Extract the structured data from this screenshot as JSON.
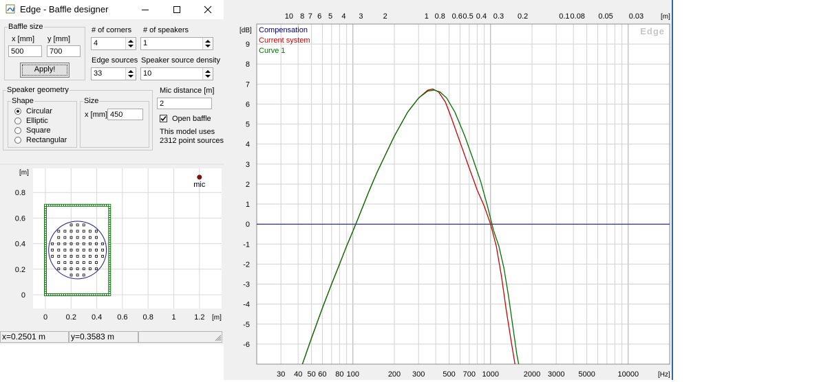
{
  "window": {
    "title": "Edge - Baffle designer",
    "baffle_size": {
      "legend": "Baffle size",
      "x_label": "x [mm]",
      "y_label": "y [mm]",
      "x_value": "500",
      "y_value": "700",
      "apply_label": "Apply!"
    },
    "corners": {
      "label": "# of corners",
      "value": "4"
    },
    "speakers": {
      "label": "# of speakers",
      "value": "1"
    },
    "edge_sources": {
      "label": "Edge sources",
      "value": "33"
    },
    "density": {
      "label": "Speaker source density",
      "value": "10"
    },
    "speaker_geometry": {
      "legend": "Speaker geometry",
      "shape_legend": "Shape",
      "shapes": [
        "Circular",
        "Elliptic",
        "Square",
        "Rectangular"
      ],
      "selected_shape": "Circular",
      "size_legend": "Size",
      "size_label": "x [mm]",
      "size_value": "450"
    },
    "mic_distance": {
      "label": "Mic distance [m]",
      "value": "2"
    },
    "open_baffle": {
      "label": "Open baffle",
      "checked": true
    },
    "model_info": {
      "line1": "This model uses",
      "line2": "2312 point sources"
    },
    "plan": {
      "unit_y": "[m]",
      "unit_x": "[m]",
      "y_ticks": [
        "0.8",
        "0.6",
        "0.4",
        "0.2",
        "0"
      ],
      "x_ticks": [
        "0",
        "0.2",
        "0.4",
        "0.6",
        "0.8",
        "1",
        "1.2"
      ],
      "mic_label": "mic",
      "baffle_w_m": 0.5,
      "baffle_h_m": 0.7,
      "speaker_center_m": [
        0.25,
        0.35
      ],
      "speaker_diameter_m": 0.45,
      "mic_pos_m": [
        1.2,
        0.92
      ]
    },
    "status": {
      "x": "x=0.2501 m",
      "y": "y=0.3583 m",
      "extra": ""
    }
  },
  "chart_data": {
    "type": "line",
    "x_scale": "log",
    "xlim": [
      20,
      20000
    ],
    "ylim": [
      -7,
      10
    ],
    "xlabel": "[Hz]",
    "ylabel": "[dB]",
    "top_axis_label": "[m]",
    "watermark": "Edge",
    "x_ticks": [
      30,
      40,
      50,
      60,
      80,
      100,
      200,
      300,
      500,
      700,
      1000,
      2000,
      3000,
      5000,
      10000
    ],
    "x_tick_labels": [
      "30",
      "40",
      "50",
      "60",
      "80",
      "100",
      "200",
      "300",
      "500",
      "700",
      "1000",
      "2000",
      "3000",
      "5000",
      "10000"
    ],
    "y_ticks": [
      -6,
      -5,
      -4,
      -3,
      -2,
      -1,
      0,
      1,
      2,
      3,
      4,
      5,
      6,
      7,
      8,
      9
    ],
    "y_tick_labels": [
      "-6",
      "-5",
      "-4",
      "-3",
      "-2",
      "-1",
      "0",
      "1",
      "2",
      "3",
      "4",
      "5",
      "6",
      "7",
      "8",
      "9"
    ],
    "top_ticks_m": [
      10,
      8,
      7,
      6,
      5,
      4,
      3,
      2,
      1,
      0.8,
      0.6,
      0.5,
      0.4,
      0.3,
      0.2,
      0.1,
      0.08,
      0.05,
      0.03
    ],
    "top_tick_labels": [
      "10",
      "8",
      "7",
      "6",
      "5",
      "4",
      "3",
      "2",
      "1",
      "0.8",
      "0.6",
      "0.5",
      "0.4",
      "0.3",
      "0.2",
      "0.1",
      "0.08",
      "0.05",
      "0.03"
    ],
    "grid": true,
    "legend_position": "top-left",
    "series": [
      {
        "name": "Compensation",
        "color": "#000080",
        "points": [
          [
            20,
            0
          ],
          [
            20000,
            0
          ]
        ]
      },
      {
        "name": "Current system",
        "color": "#cc0000",
        "points": [
          [
            42,
            -7.2
          ],
          [
            50,
            -5.7
          ],
          [
            60,
            -4.2
          ],
          [
            70,
            -3.0
          ],
          [
            80,
            -2.0
          ],
          [
            90,
            -1.1
          ],
          [
            100,
            -0.35
          ],
          [
            110,
            0.35
          ],
          [
            130,
            1.6
          ],
          [
            150,
            2.6
          ],
          [
            200,
            4.4
          ],
          [
            250,
            5.6
          ],
          [
            300,
            6.3
          ],
          [
            350,
            6.7
          ],
          [
            380,
            6.75
          ],
          [
            420,
            6.6
          ],
          [
            470,
            6.1
          ],
          [
            520,
            5.3
          ],
          [
            600,
            4.1
          ],
          [
            700,
            2.8
          ],
          [
            800,
            1.7
          ],
          [
            900,
            0.9
          ],
          [
            1000,
            0.0
          ],
          [
            1100,
            -1.1
          ],
          [
            1200,
            -2.6
          ],
          [
            1300,
            -4.3
          ],
          [
            1400,
            -5.7
          ],
          [
            1520,
            -7.2
          ]
        ]
      },
      {
        "name": "Curve 1",
        "color": "#007000",
        "points": [
          [
            42,
            -7.2
          ],
          [
            50,
            -5.7
          ],
          [
            60,
            -4.2
          ],
          [
            70,
            -3.0
          ],
          [
            80,
            -2.0
          ],
          [
            90,
            -1.1
          ],
          [
            100,
            -0.35
          ],
          [
            110,
            0.35
          ],
          [
            130,
            1.6
          ],
          [
            150,
            2.6
          ],
          [
            200,
            4.4
          ],
          [
            250,
            5.6
          ],
          [
            300,
            6.3
          ],
          [
            350,
            6.65
          ],
          [
            390,
            6.7
          ],
          [
            430,
            6.6
          ],
          [
            480,
            6.3
          ],
          [
            550,
            5.6
          ],
          [
            650,
            4.4
          ],
          [
            750,
            3.2
          ],
          [
            850,
            2.1
          ],
          [
            950,
            0.9
          ],
          [
            1050,
            -0.3
          ],
          [
            1150,
            -1.1
          ],
          [
            1250,
            -2.2
          ],
          [
            1350,
            -3.6
          ],
          [
            1450,
            -5.1
          ],
          [
            1550,
            -6.5
          ],
          [
            1620,
            -7.2
          ]
        ]
      }
    ]
  }
}
